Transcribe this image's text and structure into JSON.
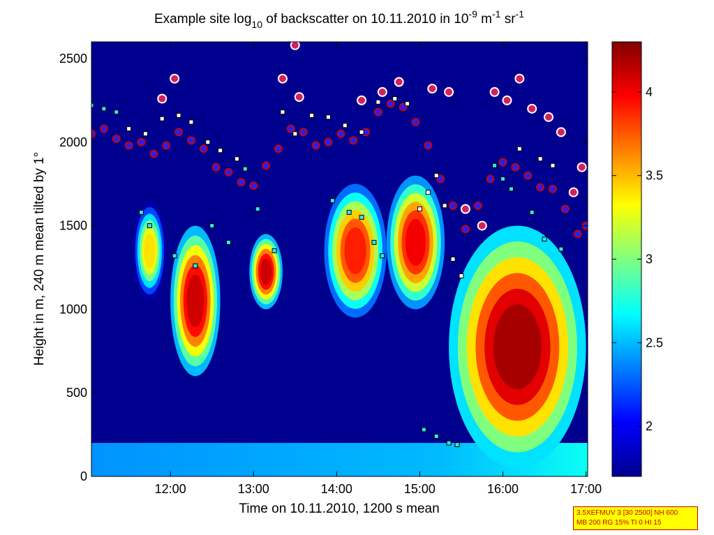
{
  "chart_data": {
    "type": "heatmap",
    "title": {
      "t1": "Example site log",
      "t1_sub": "10",
      "t2": " of backscatter on 10.11.2010 in 10",
      "t2_sup": "-9",
      "t3": " m",
      "t3_sup": "-1",
      "t4": " sr",
      "t4_sup": "-1"
    },
    "xlabel": "Time on 10.11.2010, 1200 s mean",
    "ylabel": "Height in m, 240 m mean tilted by 1°",
    "x_ticks": [
      "12:00",
      "13:00",
      "14:00",
      "15:00",
      "16:00",
      "17:00"
    ],
    "x_tick_hours": [
      12,
      13,
      14,
      15,
      16,
      17
    ],
    "xlim_hours": [
      11.05,
      17.02
    ],
    "y_ticks": [
      0,
      500,
      1000,
      1500,
      2000,
      2500
    ],
    "ylim": [
      0,
      2600
    ],
    "colorbar": {
      "ticks": [
        2,
        2.5,
        3,
        3.5,
        4
      ],
      "tick_labels": [
        "2",
        "2.5",
        "3",
        "3.5",
        "4"
      ],
      "range": [
        1.7,
        4.3
      ],
      "colormap": "jet"
    },
    "background_value": 1.7,
    "surface_layer": {
      "top_m": 200,
      "value_west": 2.4,
      "value_east": 2.7
    },
    "plumes": [
      {
        "t": [
          11.55,
          11.95
        ],
        "bottom": 1050,
        "top": 1650,
        "peak": 3.4
      },
      {
        "t": [
          12.0,
          12.6
        ],
        "bottom": 600,
        "top": 1500,
        "peak": 4.1
      },
      {
        "t": [
          12.95,
          13.35
        ],
        "bottom": 1000,
        "top": 1450,
        "peak": 4.1
      },
      {
        "t": [
          13.85,
          14.6
        ],
        "bottom": 950,
        "top": 1750,
        "peak": 3.9
      },
      {
        "t": [
          14.6,
          15.3
        ],
        "bottom": 1000,
        "top": 1800,
        "peak": 4.0
      },
      {
        "t": [
          15.35,
          17.0
        ],
        "bottom": 50,
        "top": 1500,
        "peak": 4.2
      }
    ],
    "series": [
      {
        "marker": "circle",
        "fill": "#2020ff",
        "edge": "#cc0000",
        "times": [
          11.05,
          11.2,
          11.35,
          11.5,
          11.65,
          11.8,
          11.95,
          12.1,
          12.25,
          12.4,
          12.55,
          12.7,
          12.85,
          13.0,
          13.15,
          13.3,
          13.45,
          13.6,
          13.75,
          13.9,
          14.05,
          14.2,
          14.35,
          14.5,
          14.65,
          14.8,
          14.95,
          15.1,
          15.25,
          15.4,
          15.55,
          15.7,
          15.85,
          16.0,
          16.15,
          16.3,
          16.45,
          16.6,
          16.75,
          16.9,
          17.0
        ],
        "heights": [
          2050,
          2080,
          2020,
          1980,
          2000,
          1930,
          1980,
          2060,
          2010,
          1960,
          1850,
          1820,
          1760,
          1740,
          1860,
          1960,
          2080,
          2060,
          1980,
          2000,
          2050,
          2010,
          2060,
          2180,
          2230,
          2210,
          2120,
          1980,
          1780,
          1620,
          1480,
          1620,
          1780,
          1880,
          1850,
          1800,
          1730,
          1720,
          1600,
          1450,
          1500
        ]
      },
      {
        "marker": "square",
        "fill": "#30e8e8",
        "edge": "#000000",
        "times": [
          11.05,
          11.2,
          11.35,
          11.65,
          11.75,
          12.05,
          12.3,
          12.5,
          12.7,
          12.9,
          13.05,
          13.25,
          13.95,
          14.15,
          14.3,
          14.45,
          14.55,
          15.05,
          15.2,
          15.35,
          15.45,
          15.9,
          16.0,
          16.1,
          16.35,
          16.5,
          16.7
        ],
        "heights": [
          2220,
          2200,
          2180,
          1580,
          1500,
          1320,
          1260,
          1500,
          1400,
          1840,
          1600,
          1350,
          1650,
          1580,
          1550,
          1400,
          1320,
          280,
          240,
          200,
          190,
          1860,
          1780,
          1720,
          1580,
          1420,
          1360
        ]
      },
      {
        "marker": "square",
        "fill": "#ffffff",
        "edge": "#000000",
        "times": [
          11.5,
          11.7,
          11.9,
          12.1,
          12.25,
          12.45,
          12.6,
          12.8,
          13.35,
          13.5,
          13.7,
          13.9,
          14.1,
          14.3,
          14.5,
          14.7,
          14.85,
          15.0,
          15.1,
          15.2,
          15.3,
          15.4,
          15.5,
          16.2,
          16.45,
          16.6
        ],
        "heights": [
          2080,
          2050,
          2140,
          2160,
          2120,
          2000,
          1950,
          1900,
          2180,
          2050,
          2160,
          2150,
          2100,
          2060,
          2240,
          2260,
          2230,
          1600,
          1700,
          1800,
          1620,
          1300,
          1200,
          1960,
          1900,
          1860
        ]
      },
      {
        "marker": "circle-large",
        "fill": "#d22060",
        "edge": "#ffffff",
        "times": [
          11.9,
          12.05,
          13.35,
          13.5,
          13.55,
          14.3,
          14.55,
          14.75,
          15.15,
          15.35,
          15.55,
          15.75,
          15.9,
          16.05,
          16.2,
          16.35,
          16.55,
          16.7,
          16.85,
          16.95
        ],
        "heights": [
          2260,
          2380,
          2380,
          2580,
          2270,
          2250,
          2300,
          2360,
          2320,
          2300,
          1600,
          1500,
          2300,
          2250,
          2380,
          2200,
          2150,
          2060,
          1700,
          1850
        ]
      }
    ]
  },
  "info_box": {
    "line1": "3.5XEFMUV 3 [30 2500] NH 600",
    "line2": "MB 200 RG 15% TI 0 HI 15"
  }
}
